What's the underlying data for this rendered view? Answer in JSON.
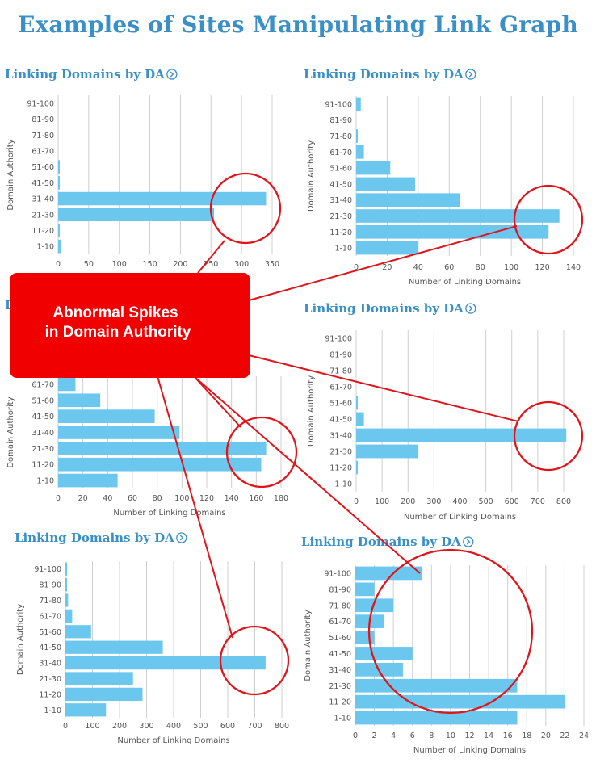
{
  "page_title": "Examples of Sites Manipulating Link Graph",
  "callout": {
    "line1": "Abnormal Spikes",
    "line2": "in Domain Authority",
    "color": "#f00000"
  },
  "colors": {
    "title": "#3a8fc6",
    "bar": "#6cc7ee",
    "annotation": "#e0141b"
  },
  "chart_data": [
    {
      "type": "bar",
      "orientation": "horizontal",
      "title": "Linking Domains by DA",
      "title_icon": "info-circle-icon",
      "ylabel": "Domain Authority",
      "xlabel": "",
      "categories": [
        "91-100",
        "81-90",
        "71-80",
        "61-70",
        "51-60",
        "41-50",
        "31-40",
        "21-30",
        "11-20",
        "1-10"
      ],
      "values": [
        0,
        0,
        0,
        0,
        2,
        2,
        340,
        255,
        2,
        4
      ],
      "xlim": [
        0,
        350
      ],
      "xticks": [
        0,
        50,
        100,
        150,
        200,
        250,
        300,
        350
      ],
      "grid": true
    },
    {
      "type": "bar",
      "orientation": "horizontal",
      "title": "Linking Domains by DA",
      "title_icon": "info-circle-icon",
      "ylabel": "Domain Authority",
      "xlabel": "Number of Linking Domains",
      "categories": [
        "91-100",
        "81-90",
        "71-80",
        "61-70",
        "51-60",
        "41-50",
        "31-40",
        "21-30",
        "11-20",
        "1-10"
      ],
      "values": [
        3,
        0,
        1,
        5,
        22,
        38,
        67,
        131,
        124,
        40
      ],
      "xlim": [
        0,
        140
      ],
      "xticks": [
        0,
        20,
        40,
        60,
        80,
        100,
        120,
        140
      ],
      "grid": true
    },
    {
      "type": "bar",
      "orientation": "horizontal",
      "title": "Linking Domains by DA",
      "title_icon": "info-circle-icon",
      "ylabel": "Domain Authority",
      "xlabel": "Number of Linking Domains",
      "categories": [
        "61-70",
        "51-60",
        "41-50",
        "31-40",
        "21-30",
        "11-20",
        "1-10"
      ],
      "values": [
        14,
        34,
        78,
        98,
        168,
        164,
        48
      ],
      "xlim": [
        0,
        180
      ],
      "xticks": [
        0,
        20,
        40,
        60,
        80,
        100,
        120,
        140,
        160,
        180
      ],
      "grid": true
    },
    {
      "type": "bar",
      "orientation": "horizontal",
      "title": "Linking Domains by DA",
      "title_icon": "info-circle-icon",
      "ylabel": "Domain Authority",
      "xlabel": "Number of Linking Domains",
      "categories": [
        "91-100",
        "81-90",
        "71-80",
        "61-70",
        "51-60",
        "41-50",
        "31-40",
        "21-30",
        "11-20",
        "1-10"
      ],
      "values": [
        0,
        0,
        0,
        0,
        3,
        30,
        810,
        240,
        3,
        0
      ],
      "xlim": [
        0,
        800
      ],
      "xticks": [
        0,
        100,
        200,
        300,
        400,
        500,
        600,
        700,
        800
      ],
      "grid": true
    },
    {
      "type": "bar",
      "orientation": "horizontal",
      "title": "Linking Domains by DA",
      "title_icon": "info-circle-icon",
      "ylabel": "Domain Authority",
      "xlabel": "Number of Linking Domains",
      "categories": [
        "91-100",
        "81-90",
        "71-80",
        "61-70",
        "51-60",
        "41-50",
        "31-40",
        "21-30",
        "11-20",
        "1-10"
      ],
      "values": [
        5,
        3,
        10,
        25,
        95,
        360,
        740,
        250,
        285,
        150
      ],
      "xlim": [
        0,
        800
      ],
      "xticks": [
        0,
        100,
        200,
        300,
        400,
        500,
        600,
        700,
        800
      ],
      "grid": true
    },
    {
      "type": "bar",
      "orientation": "horizontal",
      "title": "Linking Domains by DA",
      "title_icon": "info-circle-icon",
      "ylabel": "Domain Authority",
      "xlabel": "Number of Linking Domains",
      "categories": [
        "91-100",
        "81-90",
        "71-80",
        "61-70",
        "51-60",
        "41-50",
        "31-40",
        "21-30",
        "11-20",
        "1-10"
      ],
      "values": [
        7,
        2,
        4,
        3,
        2,
        6,
        5,
        17,
        22,
        17
      ],
      "xlim": [
        0,
        24
      ],
      "xticks": [
        0,
        2,
        4,
        6,
        8,
        10,
        12,
        14,
        16,
        18,
        20,
        22,
        24
      ],
      "grid": true
    }
  ]
}
